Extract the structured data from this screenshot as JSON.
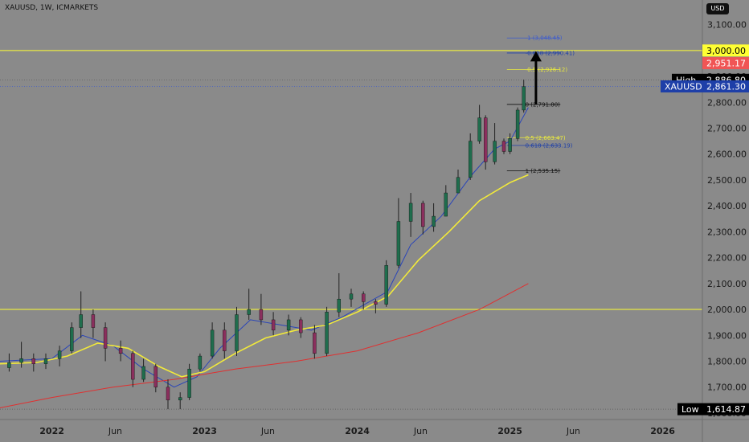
{
  "header": {
    "symbol": "XAUUSD, 1W, ICMARKETS",
    "currency": "USD"
  },
  "chart_data": {
    "type": "candlestick",
    "y_ticks": [
      3100,
      3000,
      2900,
      2800,
      2700,
      2600,
      2500,
      2400,
      2300,
      2200,
      2100,
      2000,
      1900,
      1800,
      1700,
      1600
    ],
    "y_tick_labels": [
      "3,100.00",
      "3,000.00",
      "2,900.00",
      "2,800.00",
      "2,700.00",
      "2,600.00",
      "2,500.00",
      "2,400.00",
      "2,300.00",
      "2,200.00",
      "2,100.00",
      "2,000.00",
      "1,900.00",
      "1,800.00",
      "1,700.00",
      "1,600.00"
    ],
    "x_labels": [
      {
        "t": 2022.0,
        "label": "2022"
      },
      {
        "t": 2022.415,
        "label": "Jun"
      },
      {
        "t": 2023.0,
        "label": "2023"
      },
      {
        "t": 2023.415,
        "label": "Jun"
      },
      {
        "t": 2024.0,
        "label": "2024"
      },
      {
        "t": 2024.415,
        "label": "Jun"
      },
      {
        "t": 2025.0,
        "label": "2025"
      },
      {
        "t": 2025.415,
        "label": "Jun"
      },
      {
        "t": 2026.0,
        "label": "2026"
      }
    ],
    "ylim": [
      1575,
      3195
    ],
    "xlim": [
      2021.66,
      2026.26
    ],
    "price_tags": [
      {
        "label": "",
        "value_text": "3,000.00",
        "value": 3000,
        "bg": "#ffff33",
        "fg": "#000000"
      },
      {
        "label": "",
        "value_text": "2,951.17",
        "value": 2951.17,
        "bg": "#f05555",
        "fg": "#ffffff"
      },
      {
        "label": "High",
        "value_text": "2,886.80",
        "value": 2886.8,
        "bg": "#000000",
        "fg": "#ffffff"
      },
      {
        "label": "XAUUSD",
        "value_text": "2,861.30",
        "value": 2861.3,
        "bg": "#1e3fa8",
        "fg": "#ffffff"
      },
      {
        "label": "Low",
        "value_text": "1,614.87",
        "value": 1614.87,
        "bg": "#000000",
        "fg": "#ffffff"
      }
    ],
    "levels": [
      {
        "name": "resistance",
        "value": 3000,
        "color": "#ffff33"
      },
      {
        "name": "support",
        "value": 2000,
        "color": "#ffff33"
      },
      {
        "name": "high",
        "value": 2886.8,
        "color": "#555555",
        "dashed": true
      },
      {
        "name": "current",
        "value": 2861.3,
        "color": "#3b5ad0",
        "dashed": true
      },
      {
        "name": "low",
        "value": 1614.87,
        "color": "#555555",
        "dashed": true
      }
    ],
    "fib_levels": [
      {
        "label": "-1 (3,048.45)",
        "value": 3048.45,
        "color": "#3b5ad0"
      },
      {
        "label": "-0.618 (2,990.41)",
        "value": 2990.41,
        "color": "#1e3fa8"
      },
      {
        "label": "-0.5 (2,926.12)",
        "value": 2926.12,
        "color": "#e8e840"
      },
      {
        "label": "0 (2,791.80)",
        "value": 2791.8,
        "color": "#111111"
      },
      {
        "label": "0.5 (2,663.47)",
        "value": 2663.47,
        "color": "#e8e840"
      },
      {
        "label": "0.618 (2,633.19)",
        "value": 2633.19,
        "color": "#1e3fa8"
      },
      {
        "label": "1 (2,535.15)",
        "value": 2535.15,
        "color": "#111111"
      }
    ],
    "key_candles": [
      {
        "t": 2021.72,
        "o": 1775,
        "h": 1830,
        "l": 1760,
        "c": 1795
      },
      {
        "t": 2021.8,
        "o": 1795,
        "h": 1875,
        "l": 1775,
        "c": 1810
      },
      {
        "t": 2021.88,
        "o": 1810,
        "h": 1830,
        "l": 1760,
        "c": 1790
      },
      {
        "t": 2021.96,
        "o": 1790,
        "h": 1830,
        "l": 1770,
        "c": 1810
      },
      {
        "t": 2022.05,
        "o": 1810,
        "h": 1860,
        "l": 1780,
        "c": 1840
      },
      {
        "t": 2022.13,
        "o": 1840,
        "h": 1950,
        "l": 1830,
        "c": 1930
      },
      {
        "t": 2022.19,
        "o": 1930,
        "h": 2070,
        "l": 1890,
        "c": 1980
      },
      {
        "t": 2022.27,
        "o": 1980,
        "h": 2000,
        "l": 1890,
        "c": 1930
      },
      {
        "t": 2022.35,
        "o": 1930,
        "h": 1950,
        "l": 1800,
        "c": 1850
      },
      {
        "t": 2022.45,
        "o": 1850,
        "h": 1880,
        "l": 1800,
        "c": 1830
      },
      {
        "t": 2022.53,
        "o": 1830,
        "h": 1840,
        "l": 1700,
        "c": 1730
      },
      {
        "t": 2022.6,
        "o": 1730,
        "h": 1810,
        "l": 1720,
        "c": 1780
      },
      {
        "t": 2022.68,
        "o": 1780,
        "h": 1790,
        "l": 1680,
        "c": 1700
      },
      {
        "t": 2022.76,
        "o": 1700,
        "h": 1730,
        "l": 1615,
        "c": 1650
      },
      {
        "t": 2022.84,
        "o": 1650,
        "h": 1680,
        "l": 1615,
        "c": 1660
      },
      {
        "t": 2022.9,
        "o": 1660,
        "h": 1790,
        "l": 1650,
        "c": 1770
      },
      {
        "t": 2022.97,
        "o": 1770,
        "h": 1830,
        "l": 1760,
        "c": 1820
      },
      {
        "t": 2023.05,
        "o": 1820,
        "h": 1950,
        "l": 1810,
        "c": 1920
      },
      {
        "t": 2023.13,
        "o": 1920,
        "h": 1950,
        "l": 1810,
        "c": 1840
      },
      {
        "t": 2023.21,
        "o": 1840,
        "h": 2010,
        "l": 1820,
        "c": 1980
      },
      {
        "t": 2023.29,
        "o": 1980,
        "h": 2080,
        "l": 1960,
        "c": 2000
      },
      {
        "t": 2023.37,
        "o": 2000,
        "h": 2060,
        "l": 1940,
        "c": 1960
      },
      {
        "t": 2023.45,
        "o": 1960,
        "h": 1990,
        "l": 1900,
        "c": 1920
      },
      {
        "t": 2023.55,
        "o": 1920,
        "h": 1980,
        "l": 1900,
        "c": 1960
      },
      {
        "t": 2023.63,
        "o": 1960,
        "h": 1970,
        "l": 1890,
        "c": 1910
      },
      {
        "t": 2023.72,
        "o": 1910,
        "h": 1940,
        "l": 1810,
        "c": 1830
      },
      {
        "t": 2023.8,
        "o": 1830,
        "h": 2010,
        "l": 1820,
        "c": 1990
      },
      {
        "t": 2023.88,
        "o": 1990,
        "h": 2140,
        "l": 1970,
        "c": 2040
      },
      {
        "t": 2023.96,
        "o": 2040,
        "h": 2080,
        "l": 2010,
        "c": 2060
      },
      {
        "t": 2024.04,
        "o": 2060,
        "h": 2070,
        "l": 2000,
        "c": 2030
      },
      {
        "t": 2024.12,
        "o": 2030,
        "h": 2040,
        "l": 1985,
        "c": 2020
      },
      {
        "t": 2024.19,
        "o": 2020,
        "h": 2190,
        "l": 2010,
        "c": 2170
      },
      {
        "t": 2024.27,
        "o": 2170,
        "h": 2430,
        "l": 2160,
        "c": 2340
      },
      {
        "t": 2024.35,
        "o": 2340,
        "h": 2450,
        "l": 2280,
        "c": 2410
      },
      {
        "t": 2024.43,
        "o": 2410,
        "h": 2420,
        "l": 2290,
        "c": 2320
      },
      {
        "t": 2024.5,
        "o": 2320,
        "h": 2410,
        "l": 2300,
        "c": 2360
      },
      {
        "t": 2024.58,
        "o": 2360,
        "h": 2480,
        "l": 2360,
        "c": 2450
      },
      {
        "t": 2024.66,
        "o": 2450,
        "h": 2540,
        "l": 2450,
        "c": 2510
      },
      {
        "t": 2024.74,
        "o": 2510,
        "h": 2680,
        "l": 2500,
        "c": 2650
      },
      {
        "t": 2024.8,
        "o": 2650,
        "h": 2790,
        "l": 2640,
        "c": 2740
      },
      {
        "t": 2024.84,
        "o": 2740,
        "h": 2750,
        "l": 2540,
        "c": 2570
      },
      {
        "t": 2024.9,
        "o": 2570,
        "h": 2720,
        "l": 2560,
        "c": 2650
      },
      {
        "t": 2024.96,
        "o": 2650,
        "h": 2660,
        "l": 2600,
        "c": 2610
      },
      {
        "t": 2025.0,
        "o": 2610,
        "h": 2680,
        "l": 2600,
        "c": 2660
      },
      {
        "t": 2025.05,
        "o": 2660,
        "h": 2780,
        "l": 2650,
        "c": 2770
      },
      {
        "t": 2025.09,
        "o": 2770,
        "h": 2887,
        "l": 2760,
        "c": 2861
      }
    ],
    "moving_averages": [
      {
        "name": "ema-20",
        "color": "#2a45b8",
        "points": [
          [
            2021.66,
            1800
          ],
          [
            2022.0,
            1810
          ],
          [
            2022.2,
            1900
          ],
          [
            2022.4,
            1860
          ],
          [
            2022.6,
            1770
          ],
          [
            2022.8,
            1700
          ],
          [
            2022.95,
            1740
          ],
          [
            2023.1,
            1850
          ],
          [
            2023.3,
            1960
          ],
          [
            2023.5,
            1940
          ],
          [
            2023.7,
            1920
          ],
          [
            2023.9,
            1970
          ],
          [
            2024.05,
            2020
          ],
          [
            2024.2,
            2070
          ],
          [
            2024.35,
            2250
          ],
          [
            2024.55,
            2360
          ],
          [
            2024.75,
            2520
          ],
          [
            2024.9,
            2620
          ],
          [
            2025.0,
            2650
          ],
          [
            2025.12,
            2780
          ]
        ]
      },
      {
        "name": "ema-50",
        "color": "#f2ea3a",
        "points": [
          [
            2021.66,
            1790
          ],
          [
            2021.9,
            1795
          ],
          [
            2022.1,
            1820
          ],
          [
            2022.3,
            1870
          ],
          [
            2022.5,
            1850
          ],
          [
            2022.7,
            1780
          ],
          [
            2022.85,
            1740
          ],
          [
            2023.0,
            1760
          ],
          [
            2023.2,
            1830
          ],
          [
            2023.4,
            1890
          ],
          [
            2023.6,
            1920
          ],
          [
            2023.8,
            1940
          ],
          [
            2024.0,
            1990
          ],
          [
            2024.2,
            2050
          ],
          [
            2024.4,
            2190
          ],
          [
            2024.6,
            2300
          ],
          [
            2024.8,
            2420
          ],
          [
            2025.0,
            2490
          ],
          [
            2025.12,
            2520
          ]
        ]
      },
      {
        "name": "ema-200",
        "color": "#e03030",
        "points": [
          [
            2021.66,
            1620
          ],
          [
            2022.0,
            1660
          ],
          [
            2022.4,
            1700
          ],
          [
            2022.8,
            1730
          ],
          [
            2023.2,
            1770
          ],
          [
            2023.6,
            1800
          ],
          [
            2024.0,
            1840
          ],
          [
            2024.4,
            1910
          ],
          [
            2024.8,
            2000
          ],
          [
            2025.12,
            2100
          ]
        ]
      }
    ]
  }
}
